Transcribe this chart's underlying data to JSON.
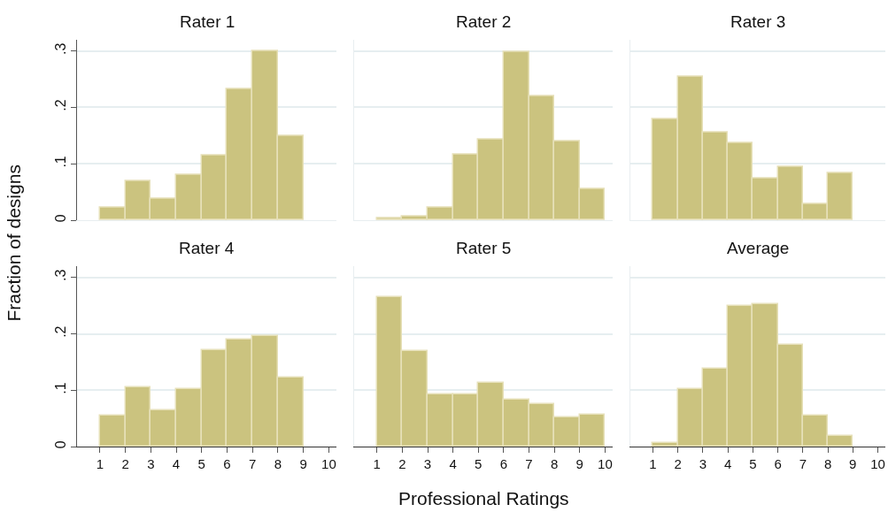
{
  "chart_data": [
    {
      "type": "histogram",
      "title": "Rater 1",
      "ylabel": "Fraction of designs",
      "bins": [
        1,
        2,
        3,
        4,
        5,
        6,
        7,
        8,
        9
      ],
      "values": [
        0.022,
        0.07,
        0.038,
        0.08,
        0.115,
        0.232,
        0.3,
        0.15
      ],
      "color": "#cbc37f",
      "xlim": [
        0.1,
        10.3
      ],
      "ylim": [
        0,
        0.32
      ],
      "yticks": [
        {
          "value": 0,
          "label": "0"
        },
        {
          "value": 0.1,
          "label": ".1"
        },
        {
          "value": 0.2,
          "label": ".2"
        },
        {
          "value": 0.3,
          "label": ".3"
        }
      ],
      "grid": "y",
      "tick_labels": "y"
    },
    {
      "type": "histogram",
      "title": "Rater 2",
      "bins": [
        1,
        2,
        3,
        4,
        5,
        6,
        7,
        8,
        9,
        10
      ],
      "values": [
        0.003,
        0.007,
        0.022,
        0.117,
        0.143,
        0.298,
        0.219,
        0.14,
        0.055
      ],
      "color": "#cbc37f",
      "xlim": [
        0.1,
        10.3
      ],
      "ylim": [
        0,
        0.32
      ],
      "yticks": [
        {
          "value": 0,
          "label": null
        },
        {
          "value": 0.1,
          "label": null
        },
        {
          "value": 0.2,
          "label": null
        },
        {
          "value": 0.3,
          "label": null
        }
      ],
      "grid": "y",
      "tick_labels": false
    },
    {
      "type": "histogram",
      "title": "Rater 3",
      "bins": [
        1,
        2,
        3,
        4,
        5,
        6,
        7,
        8,
        9
      ],
      "values": [
        0.179,
        0.254,
        0.155,
        0.136,
        0.074,
        0.095,
        0.029,
        0.084
      ],
      "color": "#cbc37f",
      "xlim": [
        0.1,
        10.3
      ],
      "ylim": [
        0,
        0.32
      ],
      "yticks": [
        {
          "value": 0,
          "label": null
        },
        {
          "value": 0.1,
          "label": null
        },
        {
          "value": 0.2,
          "label": null
        },
        {
          "value": 0.3,
          "label": null
        }
      ],
      "grid": "y",
      "tick_labels": false
    },
    {
      "type": "histogram",
      "title": "Rater 4",
      "bins": [
        1,
        2,
        3,
        4,
        5,
        6,
        7,
        8,
        9
      ],
      "values": [
        0.055,
        0.106,
        0.065,
        0.103,
        0.171,
        0.19,
        0.197,
        0.122
      ],
      "color": "#cbc37f",
      "xlim": [
        0.1,
        10.3
      ],
      "ylim": [
        0,
        0.32
      ],
      "xticks": [
        1,
        2,
        3,
        4,
        5,
        6,
        7,
        8,
        9,
        10
      ],
      "yticks": [
        {
          "value": 0,
          "label": "0"
        },
        {
          "value": 0.1,
          "label": ".1"
        },
        {
          "value": 0.2,
          "label": ".2"
        },
        {
          "value": 0.3,
          "label": ".3"
        }
      ],
      "grid": "y"
    },
    {
      "type": "histogram",
      "title": "Rater 5",
      "xlabel": "Professional Ratings",
      "bins": [
        1,
        2,
        3,
        4,
        5,
        6,
        7,
        8,
        9,
        10
      ],
      "values": [
        0.265,
        0.17,
        0.093,
        0.093,
        0.114,
        0.083,
        0.076,
        0.052,
        0.057
      ],
      "color": "#cbc37f",
      "xlim": [
        0.1,
        10.3
      ],
      "ylim": [
        0,
        0.32
      ],
      "xticks": [
        1,
        2,
        3,
        4,
        5,
        6,
        7,
        8,
        9,
        10
      ],
      "yticks": [
        {
          "value": 0,
          "label": null
        },
        {
          "value": 0.1,
          "label": null
        },
        {
          "value": 0.2,
          "label": null
        },
        {
          "value": 0.3,
          "label": null
        }
      ],
      "grid": "y",
      "tick_labels": "x"
    },
    {
      "type": "histogram",
      "title": "Average",
      "bins": [
        1,
        2,
        3,
        4,
        5,
        6,
        7,
        8,
        9
      ],
      "values": [
        0.006,
        0.102,
        0.139,
        0.25,
        0.253,
        0.18,
        0.055,
        0.02
      ],
      "color": "#cbc37f",
      "xlim": [
        0.1,
        10.3
      ],
      "ylim": [
        0,
        0.32
      ],
      "xticks": [
        1,
        2,
        3,
        4,
        5,
        6,
        7,
        8,
        9,
        10
      ],
      "yticks": [
        {
          "value": 0,
          "label": null
        },
        {
          "value": 0.1,
          "label": null
        },
        {
          "value": 0.2,
          "label": null
        },
        {
          "value": 0.3,
          "label": null
        }
      ],
      "grid": "y",
      "tick_labels": "x"
    }
  ]
}
